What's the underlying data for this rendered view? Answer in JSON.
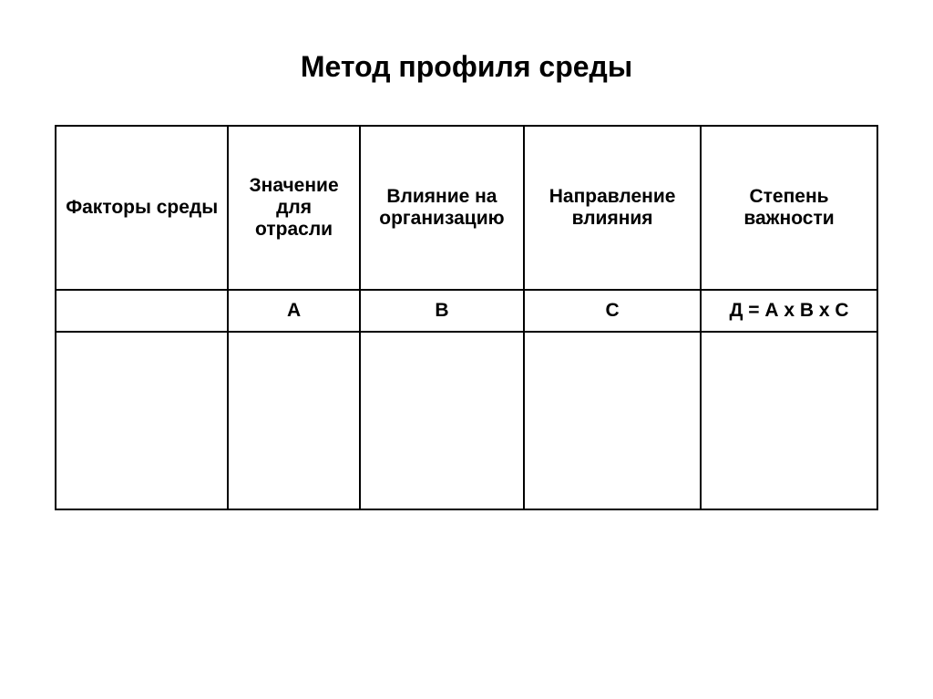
{
  "title": "Метод профиля среды",
  "table": {
    "columns": [
      "Факторы среды",
      "Значение для отрасли",
      "Влияние на организацию",
      "Направление влияния",
      "Степень важности"
    ],
    "sub_labels": [
      "",
      "А",
      "В",
      "С",
      "Д = А х В х С"
    ],
    "rows": [
      [
        "",
        "",
        "",
        "",
        ""
      ]
    ],
    "column_widths_pct": [
      21,
      16,
      20,
      21.5,
      21.5
    ],
    "border_color": "#000000",
    "background_color": "#ffffff",
    "header_fontsize": 21,
    "header_fontweight": "bold",
    "sub_fontsize": 21,
    "title_fontsize": 32,
    "title_fontweight": "bold"
  }
}
